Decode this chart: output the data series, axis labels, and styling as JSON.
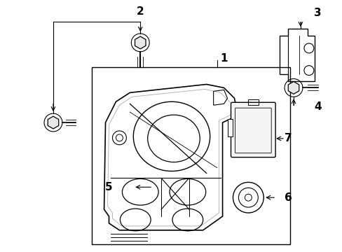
{
  "bg_color": "#ffffff",
  "line_color": "#000000",
  "gray_color": "#aaaaaa",
  "fig_width": 4.89,
  "fig_height": 3.6,
  "dpi": 100
}
